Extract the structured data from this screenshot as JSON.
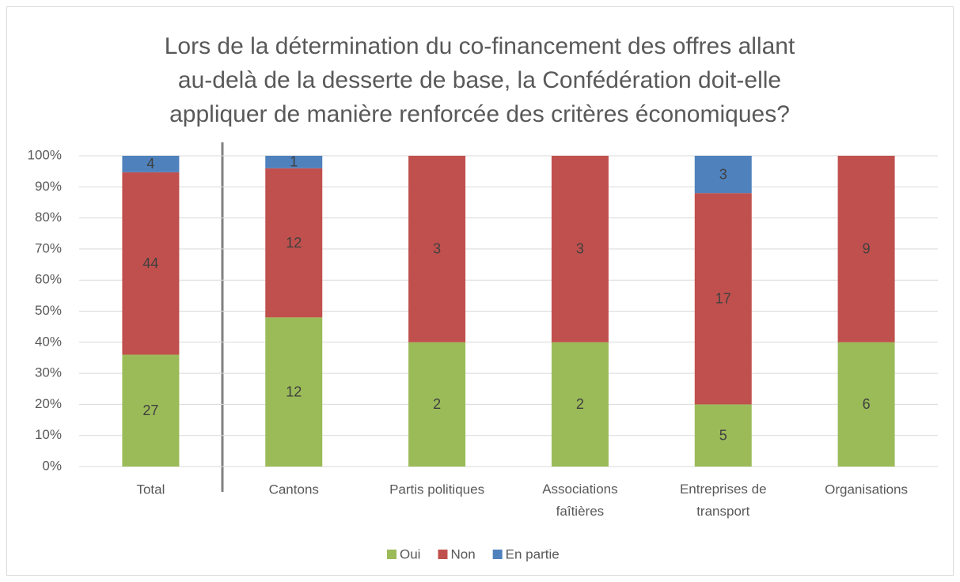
{
  "chart_data": {
    "type": "bar",
    "stacked": "percent",
    "title": [
      "Lors de la détermination du co-financement des offres allant",
      "au-delà de la desserte de base, la Confédération doit-elle",
      "appliquer de manière renforcée des critères économiques?"
    ],
    "categories": [
      "Total",
      "Cantons",
      "Partis politiques",
      "Associations faîtières",
      "Entreprises de transport",
      "Organisations"
    ],
    "series": [
      {
        "name": "Oui",
        "color": "#9bbb59",
        "values": [
          36,
          48,
          40,
          40,
          20,
          40
        ],
        "counts": [
          27,
          12,
          2,
          2,
          5,
          6
        ]
      },
      {
        "name": "Non",
        "color": "#c0504d",
        "values": [
          58.7,
          48,
          60,
          60,
          68,
          60
        ],
        "counts": [
          44,
          12,
          3,
          3,
          17,
          9
        ]
      },
      {
        "name": "En partie",
        "color": "#4f81bd",
        "values": [
          5.3,
          4,
          null,
          null,
          12,
          null
        ],
        "counts": [
          4,
          1,
          null,
          null,
          3,
          null
        ]
      }
    ],
    "ylim": [
      0,
      100
    ],
    "yticks": [
      {
        "value": 0,
        "label": "0%"
      },
      {
        "value": 10,
        "label": "10%"
      },
      {
        "value": 20,
        "label": "20%"
      },
      {
        "value": 30,
        "label": "30%"
      },
      {
        "value": 40,
        "label": "40%"
      },
      {
        "value": 50,
        "label": "50%"
      },
      {
        "value": 60,
        "label": "60%"
      },
      {
        "value": 70,
        "label": "70%"
      },
      {
        "value": 80,
        "label": "80%"
      },
      {
        "value": 90,
        "label": "90%"
      },
      {
        "value": 100,
        "label": "100%"
      }
    ],
    "grid": true,
    "legend": "bottom"
  }
}
